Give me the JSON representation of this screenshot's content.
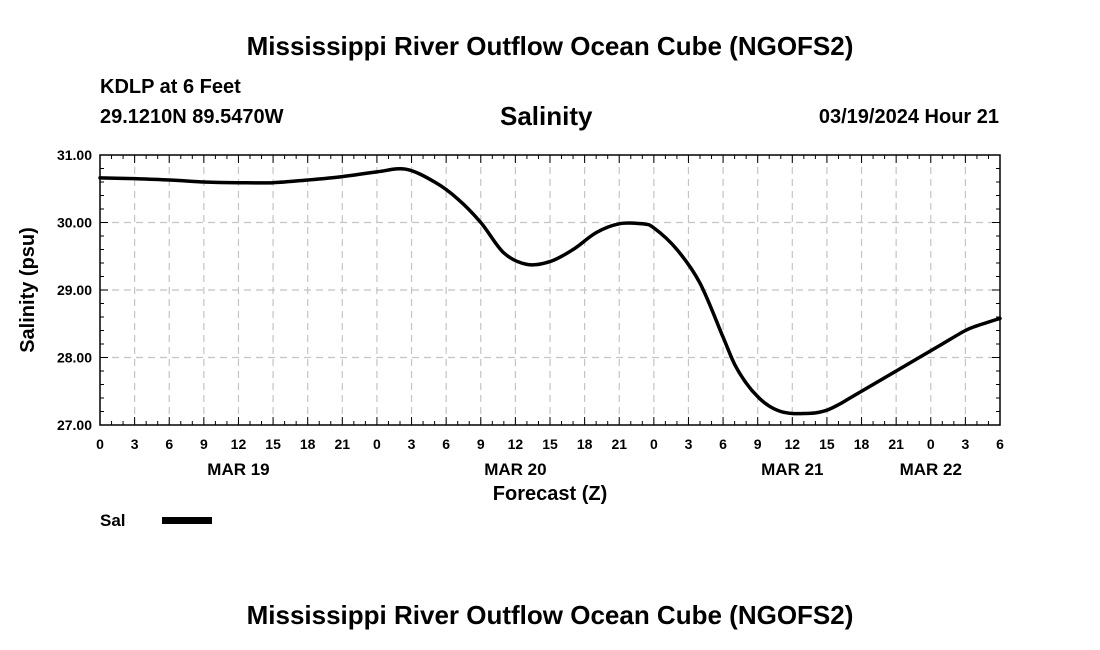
{
  "header": {
    "title": "Mississippi River Outflow Ocean Cube (NGOFS2)",
    "station": "KDLP at 6 Feet",
    "coords": "29.1210N  89.5470W",
    "subtitle": "Salinity",
    "datetime": "03/19/2024 Hour 21"
  },
  "footer": {
    "title": "Mississippi River Outflow Ocean Cube (NGOFS2)"
  },
  "chart_data": {
    "type": "line",
    "title": "Salinity",
    "xlabel": "Forecast (Z)",
    "ylabel": "Salinity (psu)",
    "ylim": [
      27.0,
      31.0
    ],
    "xlim": [
      0,
      78
    ],
    "grid": true,
    "yticks": [
      27,
      28,
      29,
      30,
      31
    ],
    "ytick_labels": [
      "27.00",
      "28.00",
      "29.00",
      "30.00",
      "31.00"
    ],
    "xtick_labels": [
      "0",
      "3",
      "6",
      "9",
      "12",
      "15",
      "18",
      "21",
      "0",
      "3",
      "6",
      "9",
      "12",
      "15",
      "18",
      "21",
      "0",
      "3",
      "6",
      "9",
      "12",
      "15",
      "18",
      "21",
      "0",
      "3",
      "6"
    ],
    "date_labels": [
      {
        "label": "MAR 19",
        "hour": 12
      },
      {
        "label": "MAR 20",
        "hour": 36
      },
      {
        "label": "MAR 21",
        "hour": 60
      },
      {
        "label": "MAR 22",
        "hour": 72
      }
    ],
    "legend": [
      {
        "name": "Sal",
        "color": "#000000"
      }
    ],
    "series": [
      {
        "name": "Sal",
        "x": [
          0,
          3,
          6,
          9,
          12,
          15,
          18,
          21,
          24,
          26.5,
          29,
          31,
          33,
          35,
          37,
          39,
          41,
          43,
          45,
          47,
          48,
          50,
          52,
          54,
          55,
          56,
          57,
          58,
          59,
          60,
          61,
          62,
          63,
          64,
          65,
          67,
          69,
          71,
          73,
          75,
          76,
          78
        ],
        "y": [
          30.66,
          30.65,
          30.63,
          30.6,
          30.59,
          30.59,
          30.63,
          30.68,
          30.75,
          30.79,
          30.6,
          30.35,
          30.0,
          29.55,
          29.38,
          29.42,
          29.6,
          29.85,
          29.98,
          29.98,
          29.92,
          29.6,
          29.1,
          28.3,
          27.9,
          27.62,
          27.42,
          27.28,
          27.2,
          27.17,
          27.17,
          27.18,
          27.22,
          27.3,
          27.4,
          27.6,
          27.8,
          28.0,
          28.2,
          28.4,
          28.47,
          28.58
        ]
      }
    ]
  }
}
